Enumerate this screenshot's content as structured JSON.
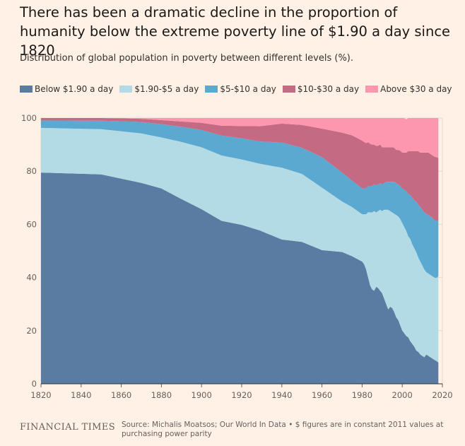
{
  "header": {
    "title": "There has been a dramatic decline in the proportion of humanity below the extreme poverty line of $1.90 a day since 1820",
    "subtitle": "Distribution of global population in poverty between different levels (%)."
  },
  "footer": {
    "publisher": "FINANCIAL TIMES",
    "source": "Source: Michalis Moatsos; Our World In Data • $ figures are in constant 2011 values at purchasing power parity"
  },
  "chart_data": {
    "type": "area",
    "stacked": true,
    "title": "There has been a dramatic decline in the proportion of humanity below the extreme poverty line of $1.90 a day since 1820",
    "subtitle": "Distribution of global population in poverty between different levels (%).",
    "xlabel": "",
    "ylabel": "",
    "xlim": [
      1820,
      2020
    ],
    "ylim": [
      0,
      100
    ],
    "x_ticks": [
      "1820",
      "1840",
      "1860",
      "1880",
      "1900",
      "1920",
      "1940",
      "1960",
      "1980",
      "2000",
      "2020"
    ],
    "y_ticks": [
      "0",
      "20",
      "40",
      "60",
      "80",
      "100"
    ],
    "grid": true,
    "legend_position": "top-left",
    "x": [
      1820,
      1850,
      1860,
      1870,
      1880,
      1890,
      1900,
      1910,
      1920,
      1929,
      1940,
      1950,
      1960,
      1970,
      1975,
      1980,
      1981,
      1982,
      1983,
      1984,
      1985,
      1986,
      1987,
      1988,
      1989,
      1990,
      1991,
      1992,
      1993,
      1994,
      1995,
      1996,
      1997,
      1998,
      1999,
      2000,
      2001,
      2002,
      2003,
      2004,
      2005,
      2006,
      2007,
      2008,
      2009,
      2010,
      2011,
      2012,
      2013,
      2014,
      2015,
      2016,
      2017,
      2018
    ],
    "series": [
      {
        "name": "Below $1.90 a day",
        "color": "#5a7ca2",
        "values": [
          79.5,
          78.8,
          77.2,
          75.6,
          73.5,
          69.5,
          65.7,
          61.3,
          59.8,
          57.7,
          54.3,
          53.4,
          50.3,
          49.6,
          48.0,
          46.0,
          45.0,
          43.0,
          40.0,
          37.0,
          35.5,
          35.0,
          36.5,
          36.0,
          35.0,
          34.0,
          32.0,
          30.0,
          28.0,
          29.0,
          28.5,
          27.0,
          25.0,
          24.0,
          22.0,
          20.0,
          19.0,
          18.0,
          17.5,
          16.0,
          15.0,
          14.0,
          12.5,
          12.0,
          11.0,
          10.5,
          10.0,
          11.0,
          10.5,
          10.0,
          9.5,
          9.0,
          8.6,
          8.0
        ]
      },
      {
        "name": "$1.90-$5 a day",
        "color": "#b3dbe6",
        "values": [
          16.8,
          17.0,
          17.8,
          18.6,
          19.2,
          21.5,
          23.3,
          24.6,
          24.6,
          25.1,
          27.0,
          25.6,
          23.5,
          19.0,
          18.5,
          17.8,
          18.8,
          20.8,
          24.6,
          27.5,
          29.0,
          30.0,
          28.0,
          29.0,
          30.5,
          31.0,
          33.5,
          35.5,
          37.5,
          36.0,
          36.0,
          37.0,
          38.5,
          39.0,
          40.0,
          40.5,
          40.0,
          39.5,
          38.0,
          38.5,
          37.5,
          37.0,
          37.0,
          35.5,
          35.0,
          34.0,
          33.0,
          31.0,
          31.0,
          31.0,
          31.0,
          31.0,
          31.2,
          32.5
        ]
      },
      {
        "name": "$5-$10 a day",
        "color": "#5ba8d0",
        "values": [
          2.8,
          3.2,
          3.8,
          4.3,
          5.0,
          5.7,
          6.5,
          7.5,
          8.0,
          8.4,
          9.5,
          9.8,
          11.5,
          10.9,
          10.0,
          9.7,
          9.7,
          9.8,
          9.8,
          9.8,
          10.0,
          10.0,
          10.2,
          10.0,
          10.0,
          10.0,
          10.0,
          10.5,
          10.5,
          11.0,
          11.5,
          12.0,
          12.0,
          12.0,
          12.5,
          13.0,
          14.0,
          15.0,
          16.0,
          16.5,
          17.5,
          18.0,
          19.0,
          20.0,
          20.5,
          21.0,
          21.5,
          22.0,
          22.0,
          22.0,
          22.0,
          21.5,
          21.5,
          21.0
        ]
      },
      {
        "name": "$10-$30 a day",
        "color": "#c46a83",
        "values": [
          0.9,
          1.0,
          1.1,
          1.2,
          1.5,
          2.0,
          2.7,
          3.7,
          4.6,
          5.7,
          7.1,
          8.6,
          10.7,
          15.0,
          17.0,
          18.0,
          17.5,
          17.0,
          16.5,
          16.0,
          15.5,
          15.0,
          14.8,
          14.6,
          14.5,
          14.0,
          13.5,
          13.0,
          13.0,
          13.0,
          13.0,
          12.8,
          12.5,
          13.0,
          13.2,
          13.5,
          14.0,
          14.5,
          16.0,
          16.5,
          17.5,
          18.5,
          19.0,
          20.0,
          20.5,
          21.5,
          22.5,
          23.0,
          23.5,
          23.5,
          23.5,
          24.0,
          24.0,
          23.5
        ]
      },
      {
        "name": "Above $30 a day",
        "color": "#fd97b0",
        "values": [
          0.0,
          0.0,
          0.1,
          0.3,
          0.8,
          1.3,
          1.8,
          2.9,
          3.0,
          3.1,
          2.1,
          2.6,
          4.0,
          5.5,
          6.5,
          8.5,
          9.0,
          9.4,
          9.1,
          9.7,
          10.0,
          10.0,
          10.5,
          10.4,
          10.0,
          11.0,
          11.0,
          11.0,
          11.0,
          11.0,
          11.0,
          11.2,
          12.0,
          12.0,
          12.3,
          13.0,
          13.0,
          12.5,
          12.5,
          12.5,
          12.5,
          12.5,
          12.5,
          12.5,
          13.0,
          13.0,
          13.0,
          13.0,
          13.0,
          13.5,
          14.0,
          14.5,
          14.7,
          15.0
        ]
      }
    ]
  }
}
